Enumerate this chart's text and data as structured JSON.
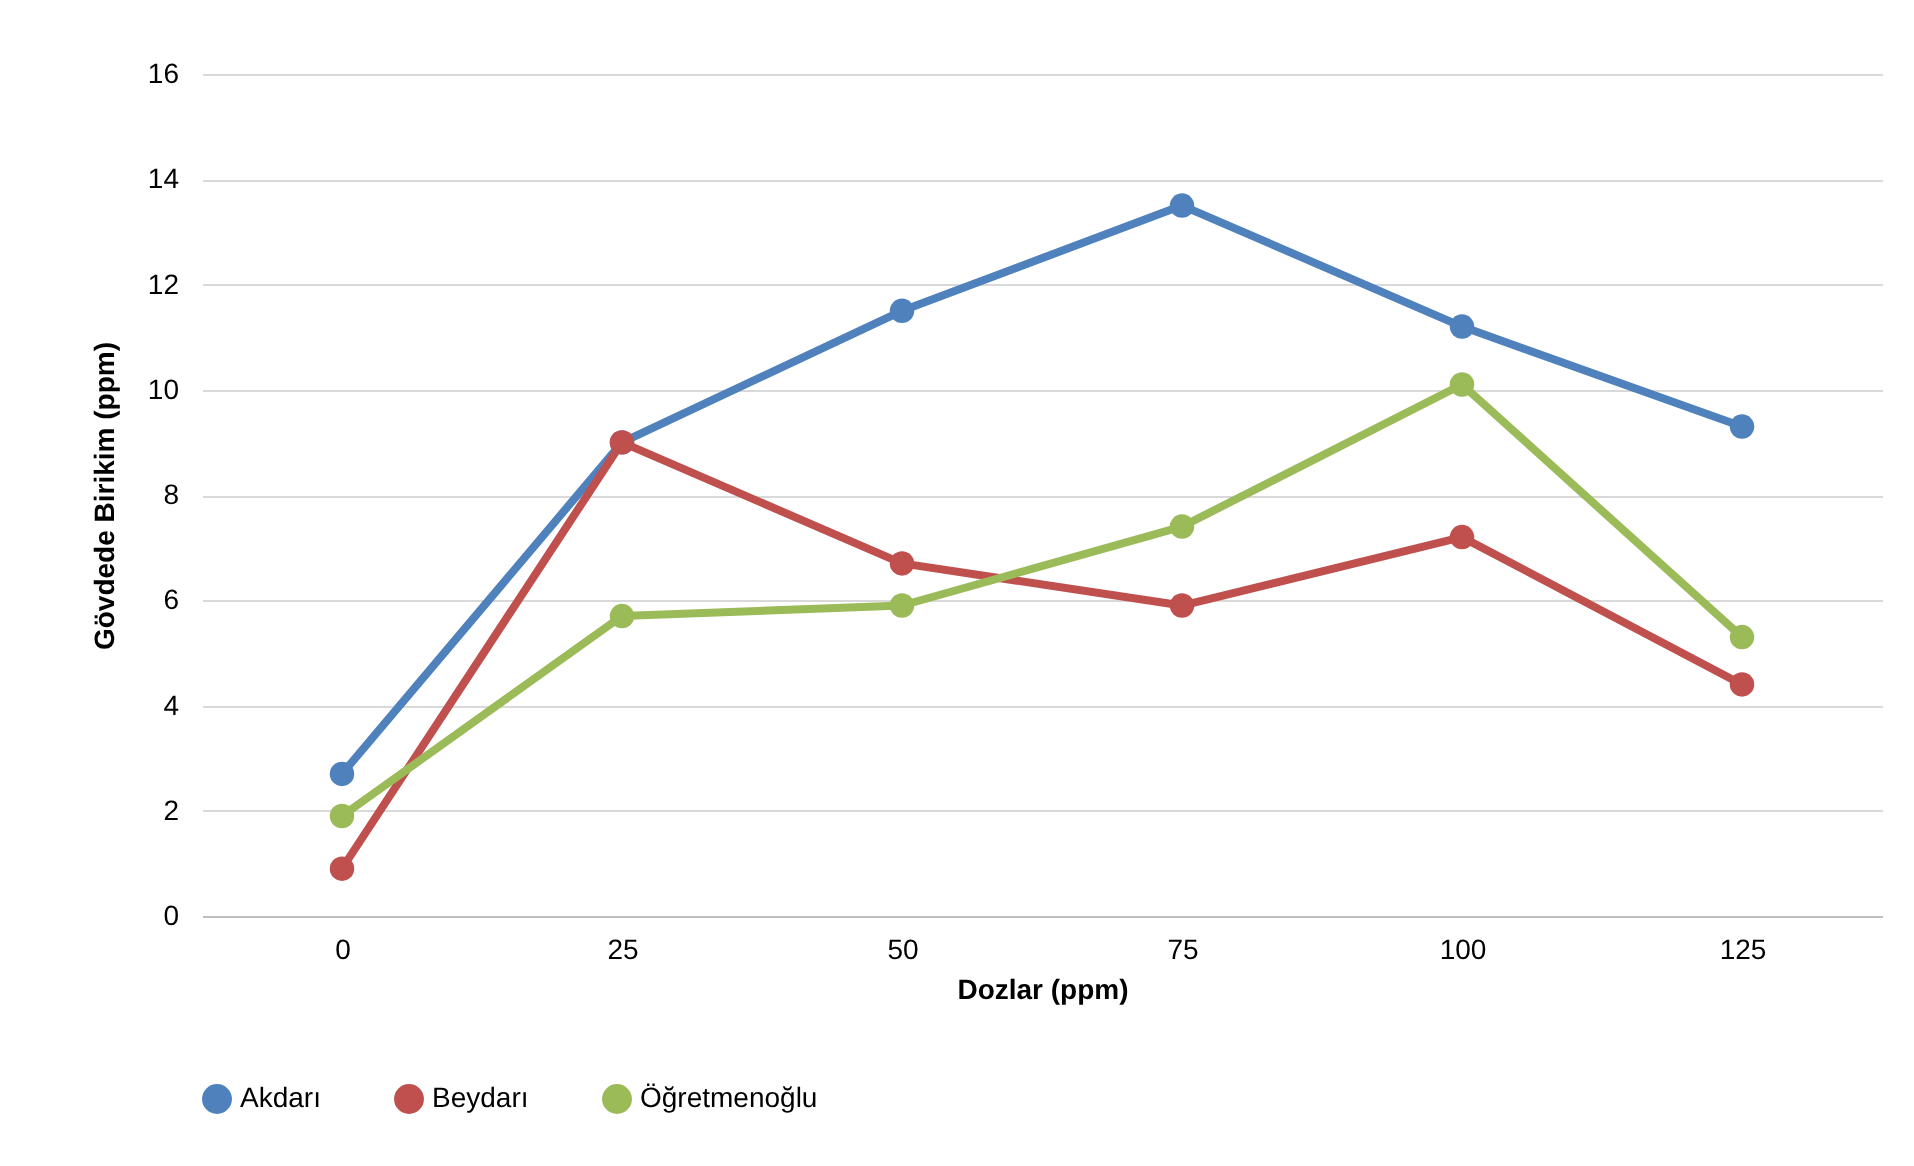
{
  "chart_data": {
    "type": "line",
    "xlabel": "Dozlar (ppm)",
    "ylabel": "Gövdede Birikim (ppm)",
    "categories": [
      "0",
      "25",
      "50",
      "75",
      "100",
      "125"
    ],
    "series": [
      {
        "name": "Akdarı",
        "color": "#4f81bd",
        "values": [
          2.7,
          9.0,
          11.5,
          13.5,
          11.2,
          9.3
        ]
      },
      {
        "name": "Beydarı",
        "color": "#c0504d",
        "values": [
          0.9,
          9.0,
          6.7,
          5.9,
          7.2,
          4.4
        ]
      },
      {
        "name": "Öğretmenoğlu",
        "color": "#9bbb59",
        "values": [
          1.9,
          5.7,
          5.9,
          7.4,
          10.1,
          5.3
        ]
      }
    ],
    "ylim": [
      0,
      16
    ],
    "yticks": [
      0,
      2,
      4,
      6,
      8,
      10,
      12,
      14,
      16
    ],
    "grid": "y",
    "legend": "bottom",
    "marker": "circle",
    "line_style": "solid"
  }
}
